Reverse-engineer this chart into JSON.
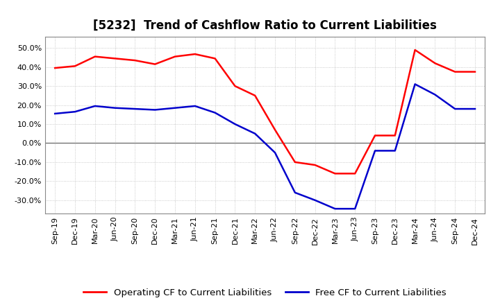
{
  "title": "[5232]  Trend of Cashflow Ratio to Current Liabilities",
  "x_labels": [
    "Sep-19",
    "Dec-19",
    "Mar-20",
    "Jun-20",
    "Sep-20",
    "Dec-20",
    "Mar-21",
    "Jun-21",
    "Sep-21",
    "Dec-21",
    "Mar-22",
    "Jun-22",
    "Sep-22",
    "Dec-22",
    "Mar-23",
    "Jun-23",
    "Sep-23",
    "Dec-23",
    "Mar-24",
    "Jun-24",
    "Sep-24",
    "Dec-24"
  ],
  "operating_cf": [
    0.395,
    0.405,
    0.455,
    0.445,
    0.435,
    0.415,
    0.455,
    0.468,
    0.445,
    0.3,
    0.25,
    0.07,
    -0.1,
    -0.115,
    -0.16,
    -0.16,
    0.04,
    0.04,
    0.49,
    0.42,
    0.375,
    0.375
  ],
  "free_cf": [
    0.155,
    0.165,
    0.195,
    0.185,
    0.18,
    0.175,
    0.185,
    0.195,
    0.16,
    0.1,
    0.05,
    -0.05,
    -0.26,
    -0.3,
    -0.345,
    -0.345,
    -0.04,
    -0.04,
    0.31,
    0.255,
    0.18,
    0.18
  ],
  "ylim": [
    -0.37,
    0.56
  ],
  "yticks": [
    -0.3,
    -0.2,
    -0.1,
    0.0,
    0.1,
    0.2,
    0.3,
    0.4,
    0.5
  ],
  "operating_color": "#FF0000",
  "free_color": "#0000CC",
  "background_color": "#FFFFFF",
  "grid_color": "#BBBBBB",
  "title_fontsize": 12,
  "legend_fontsize": 9.5,
  "tick_fontsize": 8
}
